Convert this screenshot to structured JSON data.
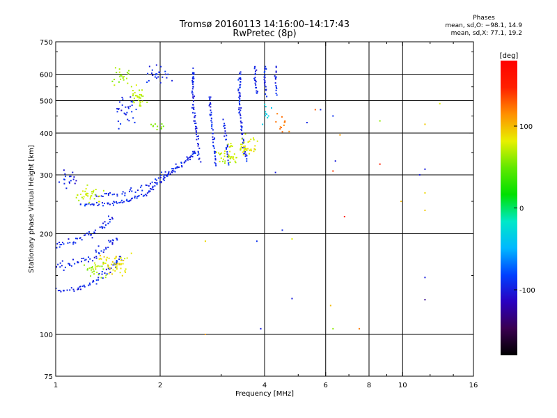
{
  "header": {
    "title": "Tromsø 20160113 14:16:00–14:17:43",
    "subtitle": "RwPretec (8p)"
  },
  "phases": {
    "title": "Phases",
    "line_o": "mean, sd,O: −98.1, 14.9",
    "line_x": "mean, sd,X:  77.1, 19.2"
  },
  "chart_data": {
    "type": "scatter",
    "xlabel": "Frequency [MHz]",
    "ylabel": "Stationary phase Virtual Height [km]",
    "x_scale": "log",
    "y_scale": "log",
    "xlim": [
      1,
      16
    ],
    "ylim": [
      75,
      750
    ],
    "x_ticks": [
      1,
      2,
      4,
      6,
      8,
      10,
      16
    ],
    "x_tick_labels": [
      "1",
      "2",
      "4",
      "6",
      "8",
      "10",
      "16"
    ],
    "x_grid": [
      2,
      4,
      6,
      8,
      10
    ],
    "y_ticks": [
      75,
      100,
      200,
      300,
      400,
      500,
      600,
      750
    ],
    "y_tick_labels": [
      "75",
      "100",
      "200",
      "300",
      "400",
      "500",
      "600",
      "750"
    ],
    "y_grid": [
      100,
      200,
      300,
      400,
      500,
      600
    ],
    "grid": true,
    "colorbar": {
      "label": "[deg]",
      "range": [
        -180,
        180
      ],
      "ticks": [
        100,
        0,
        -100
      ],
      "tick_labels": [
        "100",
        "0",
        "-100"
      ],
      "colors": [
        "#000000",
        "#3a0050",
        "#2a00c0",
        "#0040ff",
        "#00b8ff",
        "#00e8c8",
        "#00e000",
        "#60e800",
        "#e8f000",
        "#ff9000",
        "#ff2000",
        "#ff0000"
      ]
    },
    "series": [
      {
        "kind": "trace",
        "phase": -95,
        "spread_f": 0.03,
        "spread_h": 0.03,
        "density": 14,
        "points": [
          [
            1.0,
            135
          ],
          [
            1.15,
            136
          ],
          [
            1.3,
            145
          ],
          [
            1.45,
            158
          ],
          [
            1.55,
            172
          ]
        ]
      },
      {
        "kind": "trace",
        "phase": -95,
        "spread_f": 0.035,
        "spread_h": 0.04,
        "density": 14,
        "points": [
          [
            1.0,
            158
          ],
          [
            1.1,
            162
          ],
          [
            1.25,
            170
          ],
          [
            1.4,
            182
          ],
          [
            1.5,
            195
          ]
        ]
      },
      {
        "kind": "trace",
        "phase": -95,
        "spread_f": 0.035,
        "spread_h": 0.04,
        "density": 12,
        "points": [
          [
            1.0,
            185
          ],
          [
            1.12,
            190
          ],
          [
            1.25,
            200
          ],
          [
            1.38,
            212
          ],
          [
            1.45,
            225
          ]
        ]
      },
      {
        "kind": "blob",
        "phase": 85,
        "center": [
          1.45,
          165
        ],
        "spread_f": 0.08,
        "spread_h": 0.06,
        "count": 55
      },
      {
        "kind": "blob",
        "phase": 60,
        "center": [
          1.3,
          158
        ],
        "spread_f": 0.05,
        "spread_h": 0.04,
        "count": 25
      },
      {
        "kind": "trace",
        "phase": -95,
        "spread_f": 0.02,
        "spread_h": 0.02,
        "density": 16,
        "points": [
          [
            1.18,
            245
          ],
          [
            1.4,
            245
          ],
          [
            1.6,
            250
          ],
          [
            1.8,
            262
          ],
          [
            2.0,
            285
          ],
          [
            2.2,
            310
          ],
          [
            2.4,
            335
          ],
          [
            2.55,
            352
          ]
        ]
      },
      {
        "kind": "trace",
        "phase": -95,
        "spread_f": 0.025,
        "spread_h": 0.03,
        "density": 12,
        "points": [
          [
            1.3,
            262
          ],
          [
            1.5,
            262
          ],
          [
            1.75,
            272
          ],
          [
            2.0,
            295
          ],
          [
            2.25,
            322
          ]
        ]
      },
      {
        "kind": "blob",
        "phase": 75,
        "center": [
          1.25,
          262
        ],
        "spread_f": 0.07,
        "spread_h": 0.04,
        "count": 35
      },
      {
        "kind": "blob",
        "phase": -95,
        "center": [
          1.08,
          290
        ],
        "spread_f": 0.04,
        "spread_h": 0.05,
        "count": 18
      },
      {
        "kind": "trace",
        "phase": -95,
        "spread_f": 0.012,
        "spread_h": 0.025,
        "density": 16,
        "points": [
          [
            2.6,
            330
          ],
          [
            2.55,
            400
          ],
          [
            2.5,
            470
          ],
          [
            2.48,
            560
          ],
          [
            2.5,
            620
          ]
        ]
      },
      {
        "kind": "trace",
        "phase": -95,
        "spread_f": 0.012,
        "spread_h": 0.025,
        "density": 14,
        "points": [
          [
            2.9,
            320
          ],
          [
            2.85,
            380
          ],
          [
            2.8,
            450
          ],
          [
            2.78,
            520
          ]
        ]
      },
      {
        "kind": "trace",
        "phase": -95,
        "spread_f": 0.012,
        "spread_h": 0.025,
        "density": 12,
        "points": [
          [
            3.15,
            325
          ],
          [
            3.1,
            380
          ],
          [
            3.05,
            440
          ]
        ]
      },
      {
        "kind": "trace",
        "phase": -95,
        "spread_f": 0.012,
        "spread_h": 0.025,
        "density": 16,
        "points": [
          [
            3.55,
            330
          ],
          [
            3.45,
            390
          ],
          [
            3.4,
            470
          ],
          [
            3.38,
            540
          ],
          [
            3.4,
            610
          ]
        ]
      },
      {
        "kind": "trace",
        "phase": -95,
        "spread_f": 0.01,
        "spread_h": 0.02,
        "density": 10,
        "points": [
          [
            3.8,
            520
          ],
          [
            3.75,
            580
          ],
          [
            3.78,
            640
          ]
        ]
      },
      {
        "kind": "trace",
        "phase": -95,
        "spread_f": 0.01,
        "spread_h": 0.02,
        "density": 10,
        "points": [
          [
            4.05,
            520
          ],
          [
            4.0,
            580
          ],
          [
            4.02,
            640
          ]
        ]
      },
      {
        "kind": "trace",
        "phase": -95,
        "spread_f": 0.01,
        "spread_h": 0.02,
        "density": 8,
        "points": [
          [
            4.35,
            520
          ],
          [
            4.3,
            580
          ],
          [
            4.32,
            640
          ]
        ]
      },
      {
        "kind": "blob",
        "phase": 75,
        "center": [
          3.15,
          345
        ],
        "spread_f": 0.05,
        "spread_h": 0.05,
        "count": 40
      },
      {
        "kind": "blob",
        "phase": 80,
        "center": [
          3.6,
          365
        ],
        "spread_f": 0.05,
        "spread_h": 0.05,
        "count": 40
      },
      {
        "kind": "blob",
        "phase": -95,
        "center": [
          1.6,
          470
        ],
        "spread_f": 0.06,
        "spread_h": 0.08,
        "count": 30
      },
      {
        "kind": "blob",
        "phase": 70,
        "center": [
          1.72,
          510
        ],
        "spread_f": 0.04,
        "spread_h": 0.06,
        "count": 30
      },
      {
        "kind": "blob",
        "phase": 60,
        "center": [
          1.55,
          590
        ],
        "spread_f": 0.05,
        "spread_h": 0.04,
        "count": 22
      },
      {
        "kind": "blob",
        "phase": -95,
        "center": [
          2.0,
          600
        ],
        "spread_f": 0.06,
        "spread_h": 0.05,
        "count": 25
      },
      {
        "kind": "blob",
        "phase": 55,
        "center": [
          1.95,
          420
        ],
        "spread_f": 0.04,
        "spread_h": 0.03,
        "count": 10
      },
      {
        "kind": "blob",
        "phase": 120,
        "center": [
          4.5,
          430
        ],
        "spread_f": 0.04,
        "spread_h": 0.06,
        "count": 12
      },
      {
        "kind": "blob",
        "phase": -40,
        "center": [
          4.1,
          460
        ],
        "spread_f": 0.03,
        "spread_h": 0.05,
        "count": 10
      },
      {
        "kind": "points",
        "values": [
          [
            6.3,
            450,
            -90
          ],
          [
            6.4,
            330,
            -100
          ],
          [
            6.3,
            308,
            140
          ],
          [
            6.6,
            395,
            110
          ],
          [
            6.8,
            225,
            150
          ],
          [
            6.2,
            122,
            100
          ],
          [
            6.3,
            104,
            60
          ],
          [
            7.5,
            104,
            120
          ],
          [
            8.6,
            435,
            60
          ],
          [
            8.6,
            323,
            150
          ],
          [
            9.9,
            250,
            100
          ],
          [
            11.2,
            300,
            -100
          ],
          [
            11.6,
            312,
            -100
          ],
          [
            11.6,
            265,
            90
          ],
          [
            11.6,
            235,
            95
          ],
          [
            11.6,
            425,
            95
          ],
          [
            12.8,
            490,
            80
          ],
          [
            11.6,
            148,
            -100
          ],
          [
            11.6,
            127,
            -130
          ],
          [
            4.8,
            128,
            -100
          ],
          [
            4.5,
            205,
            -95
          ],
          [
            4.8,
            193,
            80
          ],
          [
            3.9,
            104,
            -100
          ],
          [
            2.7,
            190,
            90
          ],
          [
            2.7,
            100,
            110
          ],
          [
            4.3,
            305,
            -100
          ],
          [
            3.8,
            190,
            -90
          ],
          [
            5.3,
            430,
            -95
          ],
          [
            5.6,
            470,
            130
          ],
          [
            5.8,
            470,
            -95
          ]
        ]
      }
    ]
  }
}
